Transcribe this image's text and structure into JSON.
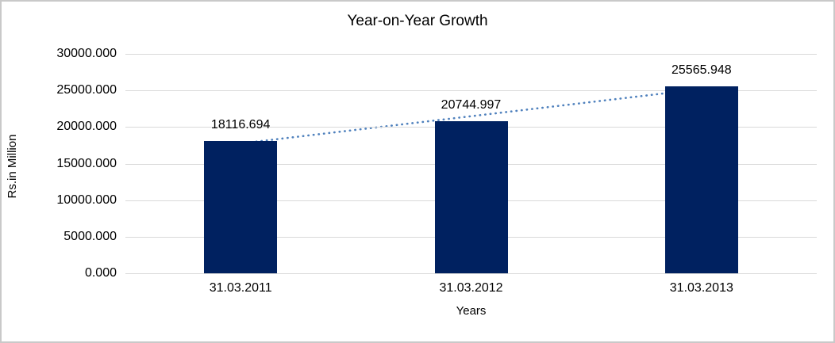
{
  "chart_data": {
    "type": "bar",
    "title": "Year-on-Year Growth",
    "xlabel": "Years",
    "ylabel": "Rs.in Million",
    "categories": [
      "31.03.2011",
      "31.03.2012",
      "31.03.2013"
    ],
    "series": [
      {
        "name": "Rs.in Million",
        "values": [
          18116.694,
          20744.997,
          25565.948
        ],
        "data_labels": [
          "18116.694",
          "20744.997",
          "25565.948"
        ],
        "color": "#002160"
      }
    ],
    "ylim": [
      0,
      30000
    ],
    "ytick_step": 5000,
    "ytick_labels": [
      "0.000",
      "5000.000",
      "10000.000",
      "15000.000",
      "20000.000",
      "25000.000",
      "30000.000"
    ],
    "grid": true,
    "legend": "none",
    "gridline_color": "#d9d9d9",
    "text_color": "#000000",
    "trendline": {
      "type": "linear",
      "style": "dotted",
      "color": "#4f81bd",
      "fitted_values": [
        17751.25,
        21475.88,
        25200.51
      ]
    }
  }
}
